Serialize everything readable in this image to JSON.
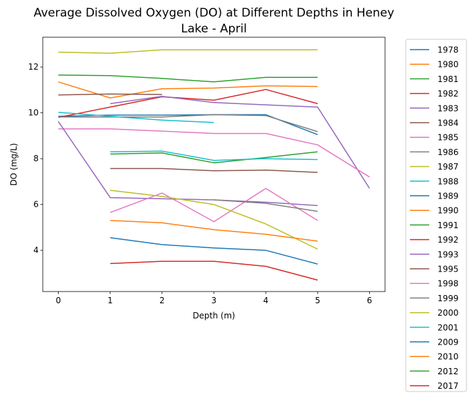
{
  "chart_data": {
    "type": "line",
    "title": "Average Dissolved Oxygen (DO) at Different Depths in Heney Lake - April",
    "title_lines": [
      "Average Dissolved Oxygen (DO) at Different Depths in Heney",
      "Lake - April"
    ],
    "xlabel": "Depth (m)",
    "ylabel": "DO (mg/L)",
    "xlim": [
      -0.3,
      6.3
    ],
    "ylim": [
      2.2,
      13.3
    ],
    "xticks": [
      0,
      1,
      2,
      3,
      4,
      5,
      6
    ],
    "yticks": [
      4,
      6,
      8,
      10,
      12
    ],
    "grid": false,
    "legend_position": "outside-right",
    "series": [
      {
        "name": "1978",
        "color": "#1f77b4",
        "x": [
          0,
          1,
          2,
          3,
          4,
          5
        ],
        "y": [
          9.85,
          9.9,
          9.9,
          9.92,
          9.92,
          9.05
        ]
      },
      {
        "name": "1980",
        "color": "#ff7f0e",
        "x": [
          0,
          1,
          2,
          3,
          4,
          5
        ],
        "y": [
          11.35,
          10.65,
          11.05,
          11.08,
          11.18,
          11.15
        ]
      },
      {
        "name": "1981",
        "color": "#2ca02c",
        "x": [
          0,
          1,
          2,
          3,
          4,
          5
        ],
        "y": [
          11.65,
          11.62,
          11.5,
          11.35,
          11.55,
          11.55
        ]
      },
      {
        "name": "1982",
        "color": "#d62728",
        "x": [
          0,
          1,
          2,
          3,
          4,
          5
        ],
        "y": [
          9.8,
          10.25,
          10.7,
          10.55,
          11.02,
          10.4
        ]
      },
      {
        "name": "1983",
        "color": "#9467bd",
        "x": [
          1,
          2,
          3,
          4,
          5,
          6
        ],
        "y": [
          10.4,
          10.72,
          10.45,
          10.35,
          10.25,
          6.7
        ]
      },
      {
        "name": "1984",
        "color": "#8c564b",
        "x": [
          0,
          1,
          2
        ],
        "y": [
          10.78,
          10.82,
          10.8
        ]
      },
      {
        "name": "1985",
        "color": "#e377c2",
        "x": [
          0,
          1,
          2,
          3,
          4,
          5,
          6
        ],
        "y": [
          9.3,
          9.3,
          9.2,
          9.1,
          9.1,
          8.6,
          7.2
        ]
      },
      {
        "name": "1986",
        "color": "#7f7f7f",
        "x": [
          0,
          1,
          2,
          3,
          4,
          5
        ],
        "y": [
          9.82,
          9.82,
          9.82,
          9.92,
          9.88,
          9.18
        ]
      },
      {
        "name": "1987",
        "color": "#bcbd22",
        "x": [
          0,
          1,
          2,
          3,
          4,
          5
        ],
        "y": [
          12.65,
          12.6,
          12.75,
          12.75,
          12.75,
          12.75
        ]
      },
      {
        "name": "1988",
        "color": "#17becf",
        "x": [
          0,
          1,
          2,
          3
        ],
        "y": [
          10.02,
          9.85,
          9.68,
          9.58
        ]
      },
      {
        "name": "1989",
        "color": "#1f77b4",
        "x": [],
        "y": []
      },
      {
        "name": "1990",
        "color": "#ff7f0e",
        "x": [],
        "y": []
      },
      {
        "name": "1991",
        "color": "#2ca02c",
        "x": [
          1,
          2,
          3,
          4,
          5
        ],
        "y": [
          8.2,
          8.25,
          7.82,
          8.05,
          8.3
        ]
      },
      {
        "name": "1992",
        "color": "#d62728",
        "x": [],
        "y": []
      },
      {
        "name": "1993",
        "color": "#9467bd",
        "x": [
          0,
          1,
          2,
          3,
          4,
          5
        ],
        "y": [
          9.62,
          6.3,
          6.25,
          6.2,
          6.1,
          5.95
        ]
      },
      {
        "name": "1995",
        "color": "#8c564b",
        "x": [
          1,
          2,
          3,
          4,
          5
        ],
        "y": [
          7.57,
          7.57,
          7.47,
          7.5,
          7.4
        ]
      },
      {
        "name": "1998",
        "color": "#e377c2",
        "x": [
          1,
          2,
          3,
          4,
          5
        ],
        "y": [
          5.65,
          6.5,
          5.25,
          6.7,
          5.3
        ]
      },
      {
        "name": "1999",
        "color": "#7f7f7f",
        "x": [
          3,
          4,
          5
        ],
        "y": [
          6.2,
          6.05,
          5.7
        ]
      },
      {
        "name": "2000",
        "color": "#bcbd22",
        "x": [
          1,
          2,
          3,
          4,
          5
        ],
        "y": [
          6.62,
          6.35,
          6.0,
          5.15,
          4.05
        ]
      },
      {
        "name": "2001",
        "color": "#17becf",
        "x": [
          1,
          2,
          3,
          4,
          5
        ],
        "y": [
          8.3,
          8.33,
          7.92,
          8.0,
          7.96
        ]
      },
      {
        "name": "2009",
        "color": "#1f77b4",
        "x": [
          1,
          2,
          3,
          4,
          5
        ],
        "y": [
          4.55,
          4.25,
          4.1,
          4.0,
          3.4
        ]
      },
      {
        "name": "2010",
        "color": "#ff7f0e",
        "x": [
          1,
          2,
          3,
          4,
          5
        ],
        "y": [
          5.3,
          5.2,
          4.9,
          4.7,
          4.4
        ]
      },
      {
        "name": "2012",
        "color": "#2ca02c",
        "x": [],
        "y": []
      },
      {
        "name": "2017",
        "color": "#d62728",
        "x": [
          1,
          2,
          3,
          4,
          5
        ],
        "y": [
          3.42,
          3.52,
          3.52,
          3.3,
          2.7
        ]
      }
    ]
  }
}
